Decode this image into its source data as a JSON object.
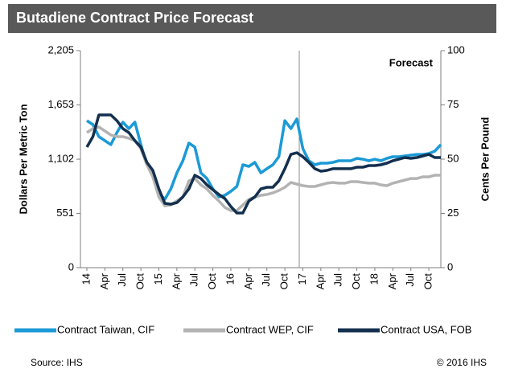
{
  "chart_data": {
    "type": "line",
    "title": "Butadiene Contract Price Forecast",
    "ylabel": "Dollars Per Metric Ton",
    "y2label": "Cents Per Pound",
    "annotation": "Forecast",
    "source": "Source: IHS",
    "copyright": "© 2016 IHS",
    "categories": [
      "14",
      null,
      null,
      "Apr",
      null,
      null,
      "Jul",
      null,
      null,
      "Oct",
      null,
      null,
      "15",
      null,
      null,
      "Apr",
      null,
      null,
      "Jul",
      null,
      null,
      "Oct",
      null,
      null,
      "16",
      null,
      null,
      "Apr",
      null,
      null,
      "Jul",
      null,
      null,
      "Oct",
      null,
      null,
      "17",
      null,
      null,
      "Apr",
      null,
      null,
      "Jul",
      null,
      null,
      "Oct",
      null,
      null,
      "18",
      null,
      null,
      "Apr",
      null,
      null,
      "Jul",
      null,
      null,
      "Oct",
      null,
      null
    ],
    "ylim": [
      0,
      2205
    ],
    "yticks": [
      0,
      551,
      {
        "value": 1102,
        "label": "1,102"
      },
      {
        "value": 1653,
        "label": "1,653"
      },
      {
        "value": 2205,
        "label": "2,205"
      }
    ],
    "y2lim": [
      0,
      100
    ],
    "y2ticks": [
      0,
      25,
      50,
      75,
      100
    ],
    "series": [
      {
        "name": "Contract Taiwan, CIF",
        "color": "#1b9ad6",
        "values": [
          1494,
          1454,
          1331,
          1290,
          1250,
          1372,
          1478,
          1413,
          1478,
          1250,
          1045,
          964,
          760,
          694,
          800,
          964,
          1086,
          1266,
          1225,
          964,
          906,
          800,
          719,
          735,
          776,
          825,
          1045,
          1029,
          1070,
          964,
          1005,
          1045,
          1127,
          1494,
          1413,
          1511,
          1209,
          1086,
          1045,
          1062,
          1062,
          1070,
          1086,
          1086,
          1086,
          1111,
          1102,
          1086,
          1102,
          1086,
          1111,
          1127,
          1127,
          1135,
          1143,
          1151,
          1151,
          1160,
          1184,
          1250
        ]
      },
      {
        "name": "Contract WEP, CIF",
        "color": "#b3b3b3",
        "values": [
          1372,
          1413,
          1429,
          1388,
          1348,
          1331,
          1331,
          1315,
          1290,
          1209,
          1045,
          923,
          719,
          629,
          637,
          678,
          719,
          882,
          906,
          841,
          800,
          735,
          678,
          612,
          580,
          580,
          637,
          694,
          719,
          735,
          743,
          760,
          784,
          817,
          866,
          849,
          833,
          825,
          825,
          841,
          858,
          866,
          858,
          858,
          874,
          874,
          866,
          858,
          858,
          841,
          833,
          858,
          874,
          890,
          906,
          906,
          923,
          923,
          939,
          939
        ]
      },
      {
        "name": "Contract USA, FOB",
        "color": "#14304f",
        "values": [
          1225,
          1331,
          1552,
          1552,
          1552,
          1494,
          1413,
          1372,
          1290,
          1225,
          1070,
          988,
          800,
          653,
          645,
          661,
          719,
          800,
          939,
          906,
          841,
          792,
          743,
          702,
          621,
          555,
          555,
          678,
          719,
          800,
          817,
          817,
          882,
          1005,
          1151,
          1168,
          1127,
          1070,
          1005,
          980,
          988,
          1005,
          1005,
          1005,
          1005,
          1021,
          1021,
          1037,
          1037,
          1045,
          1062,
          1086,
          1102,
          1119,
          1111,
          1119,
          1135,
          1151,
          1119,
          1119
        ]
      }
    ]
  }
}
